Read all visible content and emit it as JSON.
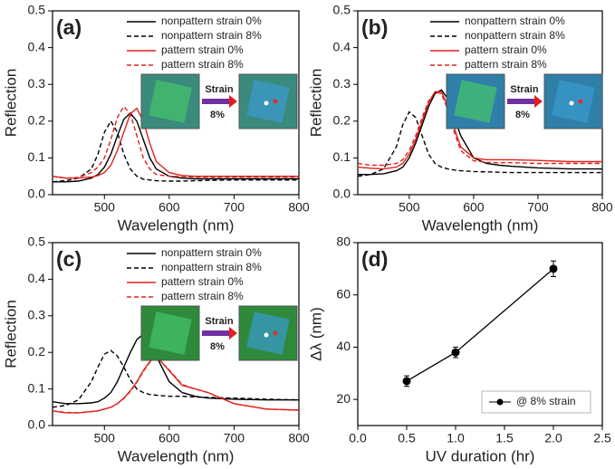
{
  "chart_data": [
    {
      "type": "line",
      "panel_label": "(a)",
      "x_label": "Wavelength (nm)",
      "y_label": "Reflection",
      "xlim": [
        420,
        800
      ],
      "xticks": [
        500,
        600,
        700,
        800
      ],
      "ylim": [
        0,
        0.5
      ],
      "yticks": [
        {
          "value": 0,
          "label": "0.0"
        },
        0.1,
        0.2,
        0.3,
        0.4,
        0.5
      ],
      "legend": "upper right",
      "annotations": [
        "Strain",
        "8%"
      ],
      "x": [
        420,
        440,
        460,
        480,
        490,
        500,
        510,
        520,
        530,
        540,
        550,
        560,
        570,
        580,
        600,
        620,
        640,
        660,
        700,
        750,
        800
      ],
      "series": [
        {
          "name": "nonpattern strain 0%",
          "color": "#000000",
          "dash": false,
          "values": [
            0.035,
            0.035,
            0.037,
            0.045,
            0.055,
            0.075,
            0.11,
            0.16,
            0.205,
            0.222,
            0.2,
            0.15,
            0.1,
            0.07,
            0.05,
            0.045,
            0.043,
            0.043,
            0.043,
            0.043,
            0.043
          ]
        },
        {
          "name": "nonpattern strain 8%",
          "color": "#000000",
          "dash": true,
          "values": [
            0.035,
            0.038,
            0.045,
            0.07,
            0.11,
            0.17,
            0.2,
            0.17,
            0.11,
            0.07,
            0.05,
            0.042,
            0.04,
            0.038,
            0.037,
            0.037,
            0.038,
            0.039,
            0.04,
            0.04,
            0.04
          ]
        },
        {
          "name": "pattern strain 0%",
          "color": "#e0201b",
          "dash": false,
          "values": [
            0.05,
            0.045,
            0.045,
            0.048,
            0.052,
            0.06,
            0.08,
            0.12,
            0.17,
            0.22,
            0.235,
            0.2,
            0.14,
            0.09,
            0.06,
            0.052,
            0.05,
            0.05,
            0.05,
            0.05,
            0.05
          ]
        },
        {
          "name": "pattern strain 8%",
          "color": "#e0201b",
          "dash": true,
          "values": [
            0.05,
            0.045,
            0.047,
            0.06,
            0.075,
            0.1,
            0.15,
            0.21,
            0.24,
            0.22,
            0.16,
            0.1,
            0.07,
            0.055,
            0.05,
            0.049,
            0.048,
            0.048,
            0.048,
            0.048,
            0.048
          ]
        }
      ]
    },
    {
      "type": "line",
      "panel_label": "(b)",
      "x_label": "Wavelength (nm)",
      "y_label": "Reflection",
      "xlim": [
        420,
        800
      ],
      "xticks": [
        500,
        600,
        700,
        800
      ],
      "ylim": [
        0,
        0.5
      ],
      "yticks": [
        {
          "value": 0,
          "label": "0.0"
        },
        0.1,
        0.2,
        0.3,
        0.4,
        0.5
      ],
      "legend": "upper right",
      "annotations": [
        "Strain",
        "8%"
      ],
      "x": [
        420,
        440,
        460,
        480,
        490,
        500,
        510,
        520,
        530,
        540,
        550,
        560,
        570,
        580,
        600,
        620,
        640,
        660,
        700,
        750,
        800
      ],
      "series": [
        {
          "name": "nonpattern strain 0%",
          "color": "#000000",
          "dash": false,
          "values": [
            0.055,
            0.055,
            0.057,
            0.065,
            0.075,
            0.1,
            0.14,
            0.19,
            0.24,
            0.275,
            0.285,
            0.26,
            0.21,
            0.16,
            0.1,
            0.085,
            0.08,
            0.077,
            0.073,
            0.07,
            0.07
          ]
        },
        {
          "name": "nonpattern strain 8%",
          "color": "#000000",
          "dash": true,
          "values": [
            0.05,
            0.055,
            0.07,
            0.13,
            0.19,
            0.225,
            0.21,
            0.16,
            0.11,
            0.085,
            0.075,
            0.07,
            0.067,
            0.065,
            0.063,
            0.062,
            0.061,
            0.06,
            0.06,
            0.06,
            0.06
          ]
        },
        {
          "name": "pattern strain 0%",
          "color": "#e0201b",
          "dash": false,
          "values": [
            0.075,
            0.072,
            0.07,
            0.075,
            0.085,
            0.11,
            0.15,
            0.2,
            0.25,
            0.28,
            0.28,
            0.24,
            0.18,
            0.13,
            0.1,
            0.095,
            0.095,
            0.095,
            0.093,
            0.09,
            0.09
          ]
        },
        {
          "name": "pattern strain 8%",
          "color": "#e0201b",
          "dash": true,
          "values": [
            0.085,
            0.08,
            0.08,
            0.085,
            0.095,
            0.12,
            0.16,
            0.21,
            0.255,
            0.278,
            0.275,
            0.23,
            0.17,
            0.12,
            0.092,
            0.088,
            0.087,
            0.087,
            0.085,
            0.085,
            0.085
          ]
        }
      ]
    },
    {
      "type": "line",
      "panel_label": "(c)",
      "x_label": "Wavelength (nm)",
      "y_label": "Reflection",
      "xlim": [
        420,
        800
      ],
      "xticks": [
        500,
        600,
        700,
        800
      ],
      "ylim": [
        0,
        0.5
      ],
      "yticks": [
        {
          "value": 0,
          "label": "0.0"
        },
        0.1,
        0.2,
        0.3,
        0.4,
        0.5
      ],
      "legend": "upper right",
      "annotations": [
        "Strain",
        "8%"
      ],
      "x": [
        420,
        440,
        460,
        480,
        490,
        500,
        510,
        520,
        530,
        540,
        550,
        560,
        570,
        580,
        600,
        620,
        640,
        660,
        700,
        750,
        800
      ],
      "series": [
        {
          "name": "nonpattern strain 0%",
          "color": "#000000",
          "dash": false,
          "values": [
            0.065,
            0.06,
            0.06,
            0.062,
            0.065,
            0.075,
            0.09,
            0.12,
            0.16,
            0.2,
            0.235,
            0.25,
            0.23,
            0.19,
            0.12,
            0.09,
            0.08,
            0.075,
            0.072,
            0.07,
            0.07
          ]
        },
        {
          "name": "nonpattern strain 8%",
          "color": "#000000",
          "dash": true,
          "values": [
            0.05,
            0.055,
            0.07,
            0.12,
            0.16,
            0.195,
            0.205,
            0.19,
            0.16,
            0.125,
            0.1,
            0.09,
            0.085,
            0.083,
            0.08,
            0.08,
            0.078,
            0.077,
            0.075,
            0.072,
            0.07
          ]
        },
        {
          "name": "pattern strain 0%",
          "color": "#e0201b",
          "dash": false,
          "values": [
            0.04,
            0.035,
            0.035,
            0.038,
            0.04,
            0.045,
            0.05,
            0.06,
            0.075,
            0.095,
            0.12,
            0.15,
            0.175,
            0.19,
            0.15,
            0.11,
            0.1,
            0.09,
            0.06,
            0.045,
            0.042
          ]
        },
        {
          "name": "pattern strain 8%",
          "color": "#e0201b",
          "dash": true,
          "values": [
            0.04,
            0.036,
            0.035,
            0.038,
            0.04,
            0.045,
            0.05,
            0.06,
            0.074,
            0.093,
            0.118,
            0.148,
            0.173,
            0.188,
            0.152,
            0.112,
            0.1,
            0.09,
            0.06,
            0.045,
            0.042
          ]
        }
      ]
    },
    {
      "type": "errorline",
      "panel_label": "(d)",
      "x_label": "UV duration (hr)",
      "y_label": "Δλ (nm)",
      "xlim": [
        0,
        2.5
      ],
      "xticks": [
        {
          "value": 0,
          "label": "0.0"
        },
        0.5,
        {
          "value": 1,
          "label": "1.0"
        },
        1.5,
        {
          "value": 2,
          "label": "2.0"
        },
        2.5
      ],
      "ylim": [
        10,
        80
      ],
      "yticks": [
        20,
        40,
        60,
        80
      ],
      "legend": "lower right",
      "x": [
        0.5,
        1,
        2
      ],
      "series": [
        {
          "name": "@ 8% strain",
          "color": "#000000",
          "values": [
            27,
            38,
            70
          ],
          "errors": [
            2,
            2,
            3
          ]
        }
      ]
    }
  ]
}
